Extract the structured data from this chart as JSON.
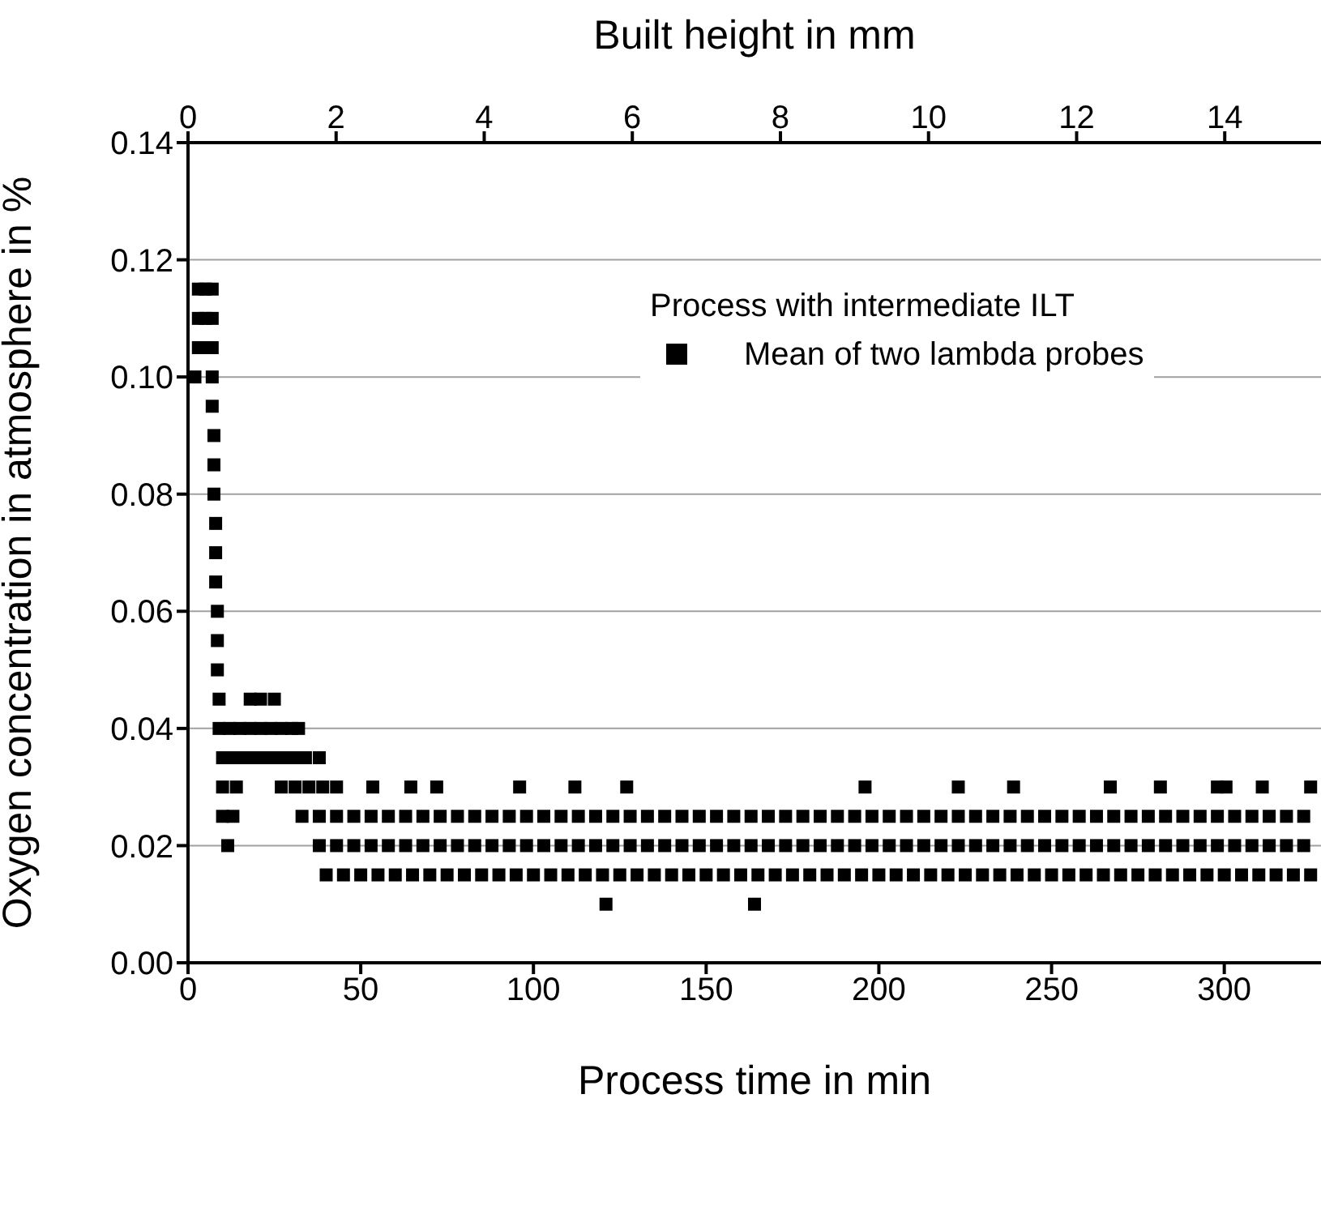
{
  "chart_data": {
    "type": "scatter",
    "xlabel": "Process time in min",
    "ylabel": "Oxygen concentration in atmosphere in %",
    "x2label": "Built height in mm",
    "legend_title": "Process with intermediate ILT",
    "xlim": [
      0,
      328
    ],
    "xticks": [
      0,
      50,
      100,
      150,
      200,
      250,
      300
    ],
    "x2lim": [
      0,
      15.3
    ],
    "x2ticks": [
      0,
      2,
      4,
      6,
      8,
      10,
      12,
      14
    ],
    "ylim": [
      0,
      0.14
    ],
    "yticks": [
      {
        "value": 0,
        "label": "0.00"
      },
      {
        "value": 0.02,
        "label": "0.02"
      },
      {
        "value": 0.04,
        "label": "0.04"
      },
      {
        "value": 0.06,
        "label": "0.06"
      },
      {
        "value": 0.08,
        "label": "0.08"
      },
      {
        "value": 0.1,
        "label": "0.10"
      },
      {
        "value": 0.12,
        "label": "0.12"
      },
      {
        "value": 0.14,
        "label": "0.14"
      }
    ],
    "grid": "y",
    "legend": "top right",
    "marker": "square",
    "series": [
      {
        "name": "Mean of two lambda probes",
        "color": "#000000",
        "x": [
          3,
          5,
          7,
          3,
          5,
          7,
          3,
          5,
          7,
          2,
          7,
          7,
          7.5,
          7.5,
          7.5,
          8,
          8,
          8,
          8.5,
          8.5,
          8.5,
          9,
          18,
          21,
          25,
          9,
          12,
          15,
          18,
          21,
          24,
          27,
          30,
          32,
          10,
          13,
          16,
          19,
          22,
          25,
          28,
          31,
          34,
          38,
          10,
          14,
          27,
          31,
          35,
          39,
          43,
          53.5,
          64.5,
          72,
          96,
          112,
          127,
          196,
          223,
          239,
          267,
          281.5,
          298,
          300.5,
          311,
          325,
          10,
          13,
          33,
          38,
          43,
          48,
          53,
          58,
          63,
          68,
          73,
          78,
          83,
          88,
          93,
          98,
          103,
          108,
          113,
          118,
          123,
          128,
          133,
          138,
          143,
          148,
          153,
          158,
          163,
          168,
          173,
          178,
          183,
          188,
          193,
          198,
          203,
          208,
          213,
          218,
          223,
          228,
          233,
          238,
          243,
          248,
          253,
          258,
          263,
          268,
          273,
          278,
          283,
          288,
          293,
          298,
          303,
          308,
          313,
          318,
          323,
          11.5,
          38,
          43,
          48,
          53,
          58,
          63,
          68,
          73,
          78,
          83,
          88,
          93,
          98,
          103,
          108,
          113,
          118,
          123,
          128,
          133,
          138,
          143,
          148,
          153,
          158,
          163,
          168,
          173,
          178,
          183,
          188,
          193,
          198,
          203,
          208,
          213,
          218,
          223,
          228,
          233,
          238,
          243,
          248,
          253,
          258,
          263,
          268,
          273,
          278,
          283,
          288,
          293,
          298,
          303,
          308,
          313,
          318,
          323,
          40,
          45,
          50,
          55,
          60,
          65,
          70,
          75,
          80,
          85,
          90,
          95,
          100,
          105,
          110,
          115,
          120,
          125,
          130,
          135,
          140,
          145,
          150,
          155,
          160,
          165,
          170,
          175,
          180,
          185,
          190,
          195,
          200,
          205,
          210,
          215,
          220,
          225,
          230,
          235,
          240,
          245,
          250,
          255,
          260,
          265,
          270,
          275,
          280,
          285,
          290,
          295,
          300,
          305,
          310,
          315,
          320,
          325,
          121,
          164
        ],
        "values": [
          0.115,
          0.115,
          0.115,
          0.11,
          0.11,
          0.11,
          0.105,
          0.105,
          0.105,
          0.1,
          0.1,
          0.095,
          0.09,
          0.085,
          0.08,
          0.075,
          0.07,
          0.065,
          0.06,
          0.055,
          0.05,
          0.045,
          0.045,
          0.045,
          0.045,
          0.04,
          0.04,
          0.04,
          0.04,
          0.04,
          0.04,
          0.04,
          0.04,
          0.04,
          0.035,
          0.035,
          0.035,
          0.035,
          0.035,
          0.035,
          0.035,
          0.035,
          0.035,
          0.035,
          0.03,
          0.03,
          0.03,
          0.03,
          0.03,
          0.03,
          0.03,
          0.03,
          0.03,
          0.03,
          0.03,
          0.03,
          0.03,
          0.03,
          0.03,
          0.03,
          0.03,
          0.03,
          0.03,
          0.03,
          0.03,
          0.03,
          0.025,
          0.025,
          0.025,
          0.025,
          0.025,
          0.025,
          0.025,
          0.025,
          0.025,
          0.025,
          0.025,
          0.025,
          0.025,
          0.025,
          0.025,
          0.025,
          0.025,
          0.025,
          0.025,
          0.025,
          0.025,
          0.025,
          0.025,
          0.025,
          0.025,
          0.025,
          0.025,
          0.025,
          0.025,
          0.025,
          0.025,
          0.025,
          0.025,
          0.025,
          0.025,
          0.025,
          0.025,
          0.025,
          0.025,
          0.025,
          0.025,
          0.025,
          0.025,
          0.025,
          0.025,
          0.025,
          0.025,
          0.025,
          0.025,
          0.025,
          0.025,
          0.025,
          0.025,
          0.025,
          0.025,
          0.025,
          0.025,
          0.025,
          0.025,
          0.025,
          0.025,
          0.02,
          0.02,
          0.02,
          0.02,
          0.02,
          0.02,
          0.02,
          0.02,
          0.02,
          0.02,
          0.02,
          0.02,
          0.02,
          0.02,
          0.02,
          0.02,
          0.02,
          0.02,
          0.02,
          0.02,
          0.02,
          0.02,
          0.02,
          0.02,
          0.02,
          0.02,
          0.02,
          0.02,
          0.02,
          0.02,
          0.02,
          0.02,
          0.02,
          0.02,
          0.02,
          0.02,
          0.02,
          0.02,
          0.02,
          0.02,
          0.02,
          0.02,
          0.02,
          0.02,
          0.02,
          0.02,
          0.02,
          0.02,
          0.02,
          0.02,
          0.02,
          0.02,
          0.02,
          0.02,
          0.02,
          0.02,
          0.02,
          0.02,
          0.02,
          0.015,
          0.015,
          0.015,
          0.015,
          0.015,
          0.015,
          0.015,
          0.015,
          0.015,
          0.015,
          0.015,
          0.015,
          0.015,
          0.015,
          0.015,
          0.015,
          0.015,
          0.015,
          0.015,
          0.015,
          0.015,
          0.015,
          0.015,
          0.015,
          0.015,
          0.015,
          0.015,
          0.015,
          0.015,
          0.015,
          0.015,
          0.015,
          0.015,
          0.015,
          0.015,
          0.015,
          0.015,
          0.015,
          0.015,
          0.015,
          0.015,
          0.015,
          0.015,
          0.015,
          0.015,
          0.015,
          0.015,
          0.015,
          0.015,
          0.015,
          0.015,
          0.015,
          0.015,
          0.015,
          0.015,
          0.015,
          0.015,
          0.015,
          0.01,
          0.01
        ]
      }
    ]
  }
}
